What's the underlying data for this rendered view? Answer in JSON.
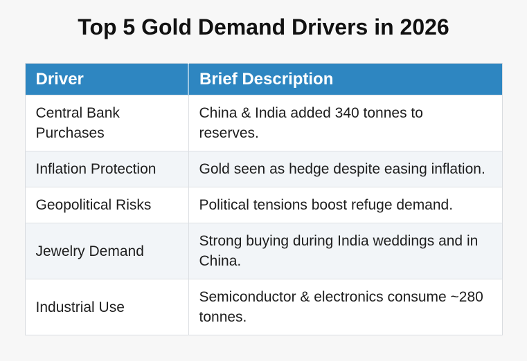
{
  "page": {
    "title": "Top 5 Gold Demand Drivers in 2026"
  },
  "colors": {
    "page_background": "#f7f7f7",
    "header_background": "#2e86c1",
    "header_text": "#ffffff",
    "stripe_background": "#f2f5f8",
    "border": "#dcdfe3",
    "title_text": "#111111",
    "body_text": "#1d1d1d"
  },
  "table": {
    "columns": [
      {
        "label": "Driver"
      },
      {
        "label": "Brief Description"
      }
    ],
    "rows": [
      {
        "driver": "Central Bank\nPurchases",
        "description": "China & India added 340 tonnes to\nreserves."
      },
      {
        "driver": "Inflation Protection",
        "description": "Gold seen as hedge despite easing inflation."
      },
      {
        "driver": "Geopolitical Risks",
        "description": "Political tensions boost refuge demand."
      },
      {
        "driver": "Jewelry Demand",
        "description": "Strong buying during India weddings and in\nChina."
      },
      {
        "driver": "Industrial Use",
        "description": "Semiconductor & electronics consume ~280\ntonnes."
      }
    ]
  }
}
